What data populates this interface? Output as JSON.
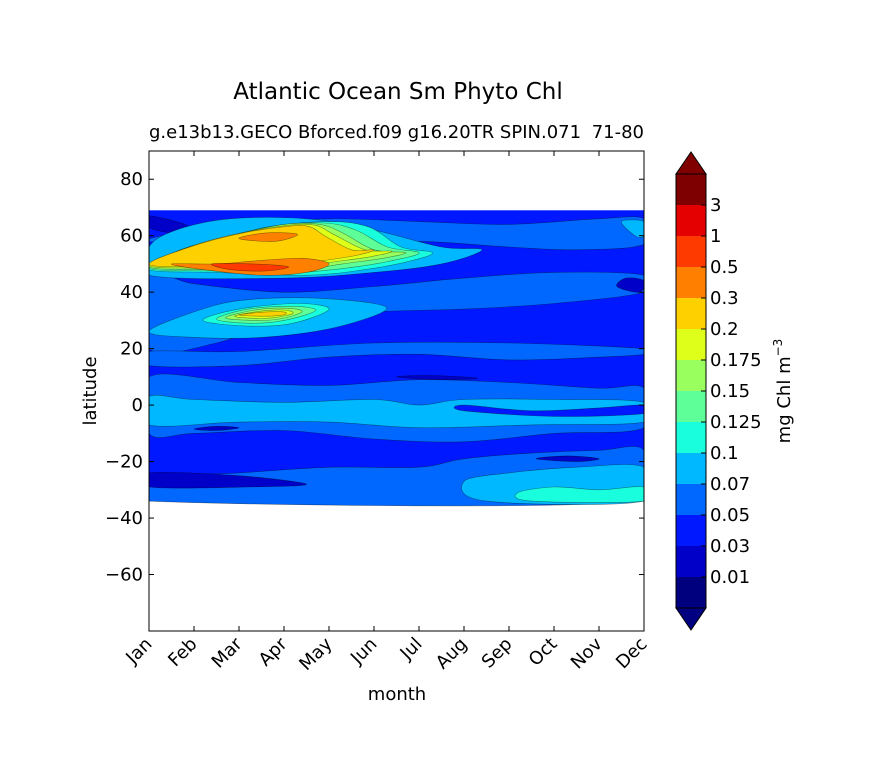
{
  "chart_data": {
    "type": "heatmap",
    "subtype": "filled-contour",
    "title": "Atlantic Ocean Sm Phyto Chl",
    "subtitle_left": "g.e13b13.GECO Bforced.f09 g16.20TR SPIN.071",
    "subtitle_right": "71-80",
    "xlabel": "month",
    "ylabel": "latitude",
    "x_categories": [
      "Jan",
      "Feb",
      "Mar",
      "Apr",
      "May",
      "Jun",
      "Jul",
      "Aug",
      "Sep",
      "Oct",
      "Nov",
      "Dec"
    ],
    "xlim": [
      0,
      11
    ],
    "ylim": [
      -80,
      90
    ],
    "y_ticks": [
      80,
      60,
      40,
      20,
      0,
      -20,
      -40,
      -60
    ],
    "data_lat_range": [
      -34,
      69
    ],
    "colorbar": {
      "label": "mg Chl m",
      "label_superscript": "−3",
      "levels": [
        "0.01",
        "0.03",
        "0.05",
        "0.07",
        "0.1",
        "0.125",
        "0.15",
        "0.175",
        "0.2",
        "0.3",
        "0.5",
        "1",
        "3"
      ],
      "colors": [
        "#00007f",
        "#0000c8",
        "#0018ff",
        "#0068ff",
        "#00b8ff",
        "#19ffde",
        "#5eff99",
        "#99ff5e",
        "#deff19",
        "#ffd000",
        "#ff8000",
        "#ff3a00",
        "#e40000",
        "#7f0000"
      ],
      "under_color": "#000080",
      "over_color": "#800000",
      "extend": "both"
    },
    "fields": [
      {
        "region": "background",
        "lat": [
          -34,
          69
        ],
        "months": [
          0,
          11
        ],
        "value_range": "0.05-0.07"
      },
      {
        "region": "subpolar bloom",
        "lat": [
          44,
          66
        ],
        "months": [
          0,
          5.3
        ],
        "peak": "0.5-1",
        "peak_months": [
          1.7,
          4.2
        ]
      },
      {
        "region": "bloom tail",
        "lat": [
          51,
          57
        ],
        "months": [
          4.5,
          6.8
        ],
        "value_range": "0.1-0.2"
      },
      {
        "region": "subtropical patch",
        "lat": [
          24,
          39
        ],
        "months": [
          0,
          4.5
        ],
        "peak": "0.2-0.3",
        "peak_months": [
          1.5,
          3.5
        ]
      },
      {
        "region": "equatorial band",
        "lat": [
          -8,
          3
        ],
        "months": [
          0,
          11
        ],
        "value_range": "0.07-0.1"
      },
      {
        "region": "southern patch",
        "lat": [
          -34,
          -20
        ],
        "months": [
          7,
          11
        ],
        "value_range": "0.07-0.125"
      },
      {
        "region": "subtropical gyre minimum",
        "lat": [
          -34,
          -22
        ],
        "months": [
          0,
          6
        ],
        "value_range": "0.03-0.05"
      }
    ]
  }
}
